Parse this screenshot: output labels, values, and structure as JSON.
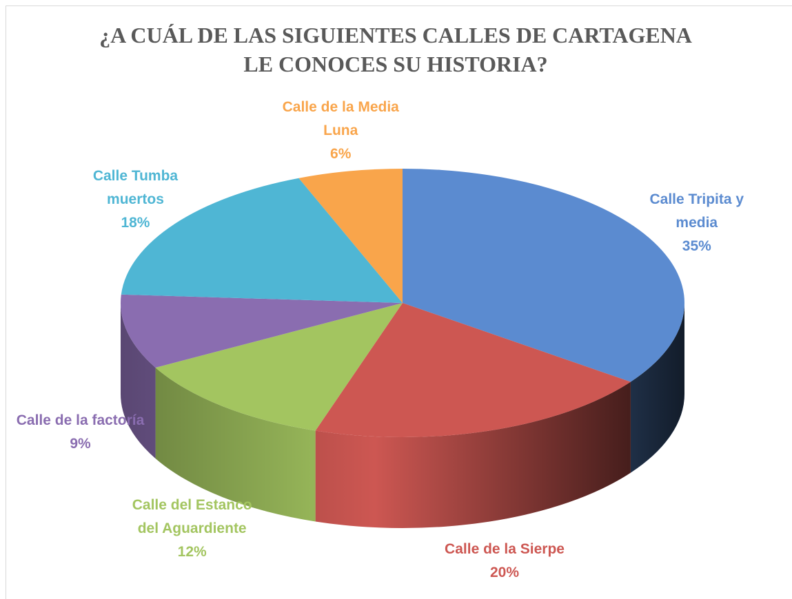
{
  "chart_data": {
    "type": "pie3d",
    "title": "¿A CUÁL DE LAS SIGUIENTES CALLES DE CARTAGENA LE CONOCES SU HISTORIA?",
    "categories": [
      "Calle Tripita y media",
      "Calle de la Sierpe",
      "Calle del Estanco del Aguardiente",
      "Calle de la factoría",
      "Calle Tumba muertos",
      "Calle de la Media Luna"
    ],
    "values": [
      35,
      20,
      12,
      9,
      18,
      6
    ],
    "value_labels": [
      "35%",
      "20%",
      "12%",
      "9%",
      "18%",
      "6%"
    ],
    "colors": [
      "#5b8bd0",
      "#cd5752",
      "#a3c560",
      "#8a6db0",
      "#4fb6d4",
      "#f9a54b"
    ]
  }
}
